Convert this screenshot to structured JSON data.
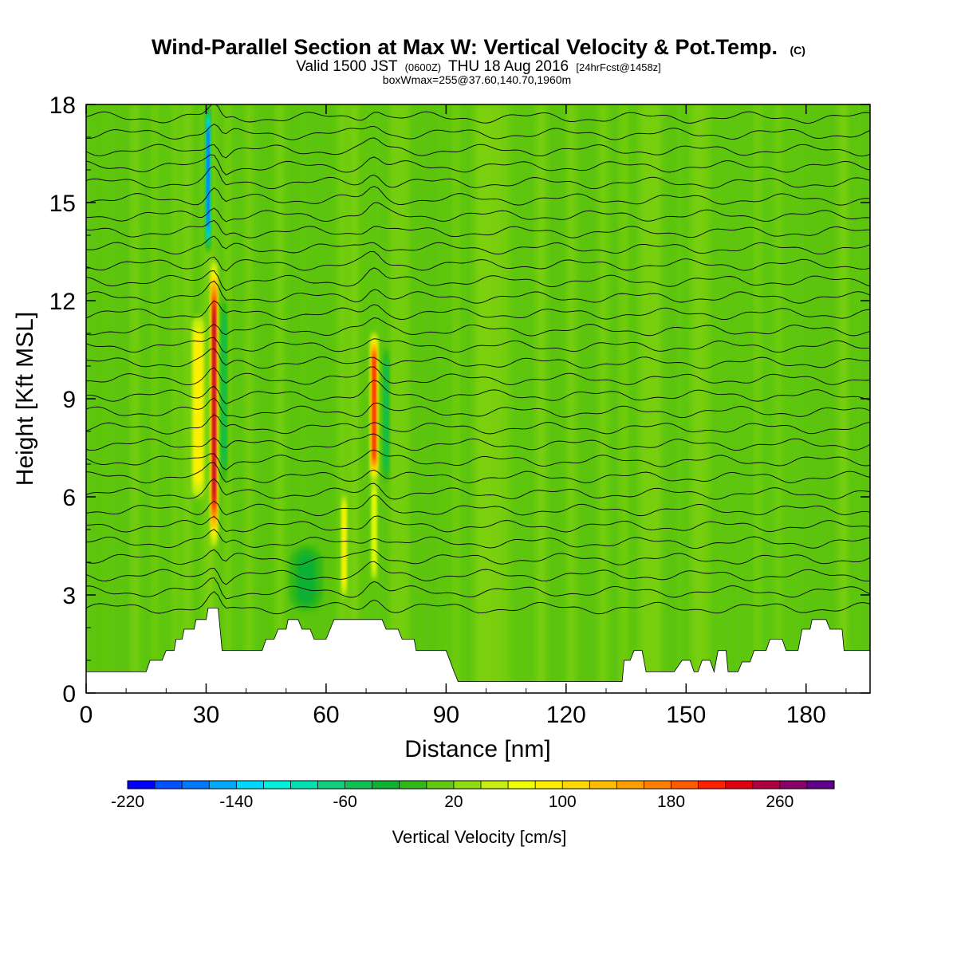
{
  "header": {
    "title": "Wind-Parallel Section at Max W: Vertical Velocity & Pot.Temp.",
    "copyright": "(C)",
    "valid_prefix": "Valid 1500 JST",
    "valid_utc": "(0600Z)",
    "valid_date": "THU 18 Aug 2016",
    "forecast": "[24hrFcst@1458z]",
    "box_note": "boxWmax=255@37.60,140.70,1960m"
  },
  "chart_data": {
    "type": "heatmap",
    "xlabel": "Distance [nm]",
    "ylabel": "Height [Kft MSL]",
    "xlim": [
      0,
      196
    ],
    "ylim": [
      0,
      18
    ],
    "x_ticks": [
      "0",
      "30",
      "60",
      "90",
      "120",
      "150",
      "180"
    ],
    "y_ticks": [
      "0",
      "3",
      "6",
      "9",
      "12",
      "15",
      "18"
    ],
    "x_tick_values": [
      0,
      30,
      60,
      90,
      120,
      150,
      180
    ],
    "y_tick_values": [
      0,
      3,
      6,
      9,
      12,
      15,
      18
    ],
    "background_value": 10,
    "updrafts": [
      {
        "x": 32,
        "width": 1.2,
        "z_min": 4.5,
        "z_max": 13.2,
        "peak": 255
      },
      {
        "x": 28,
        "width": 2.2,
        "z_min": 6.0,
        "z_max": 11.5,
        "peak": 80
      },
      {
        "x": 72,
        "width": 1.3,
        "z_min": 6.5,
        "z_max": 11.0,
        "peak": 200
      },
      {
        "x": 64.5,
        "width": 0.9,
        "z_min": 3.0,
        "z_max": 6.0,
        "peak": 80
      },
      {
        "x": 72,
        "width": 1.0,
        "z_min": 3.5,
        "z_max": 6.5,
        "peak": 70
      }
    ],
    "downdrafts": [
      {
        "x": 30.5,
        "width": 0.9,
        "z_min": 13.5,
        "z_max": 18.0,
        "peak": -200
      },
      {
        "x": 34.5,
        "width": 1.0,
        "z_min": 6.5,
        "z_max": 12.0,
        "peak": -60
      },
      {
        "x": 75,
        "width": 1.0,
        "z_min": 6.5,
        "z_max": 10.5,
        "peak": -60
      },
      {
        "x": 55,
        "width": 6.0,
        "z_min": 2.5,
        "z_max": 4.5,
        "peak": -40
      }
    ],
    "terrain": [
      [
        0,
        0.65
      ],
      [
        8,
        0.65
      ],
      [
        15,
        0.65
      ],
      [
        16,
        1.0
      ],
      [
        19,
        1.0
      ],
      [
        20,
        1.3
      ],
      [
        22,
        1.3
      ],
      [
        22.5,
        1.65
      ],
      [
        24,
        1.65
      ],
      [
        24.5,
        1.95
      ],
      [
        27,
        1.95
      ],
      [
        27.5,
        2.25
      ],
      [
        30,
        2.25
      ],
      [
        30.5,
        2.6
      ],
      [
        33,
        2.6
      ],
      [
        33.5,
        1.95
      ],
      [
        34,
        1.3
      ],
      [
        44,
        1.3
      ],
      [
        45,
        1.65
      ],
      [
        47,
        1.65
      ],
      [
        48,
        1.95
      ],
      [
        50,
        1.95
      ],
      [
        50.5,
        2.25
      ],
      [
        53,
        2.25
      ],
      [
        54,
        1.95
      ],
      [
        56,
        1.95
      ],
      [
        57,
        1.65
      ],
      [
        60,
        1.65
      ],
      [
        61,
        1.95
      ],
      [
        62,
        2.25
      ],
      [
        74,
        2.25
      ],
      [
        75,
        1.95
      ],
      [
        78,
        1.95
      ],
      [
        79,
        1.65
      ],
      [
        82,
        1.65
      ],
      [
        82.5,
        1.3
      ],
      [
        90,
        1.3
      ],
      [
        92,
        0.65
      ],
      [
        93,
        0.35
      ],
      [
        134,
        0.35
      ],
      [
        134.5,
        1.0
      ],
      [
        136,
        1.0
      ],
      [
        137,
        1.3
      ],
      [
        139,
        1.3
      ],
      [
        140,
        0.65
      ],
      [
        147,
        0.65
      ],
      [
        149,
        1.0
      ],
      [
        151,
        1.0
      ],
      [
        152,
        0.65
      ],
      [
        153,
        0.65
      ],
      [
        154,
        1.0
      ],
      [
        156,
        1.0
      ],
      [
        157,
        0.65
      ],
      [
        158,
        1.3
      ],
      [
        160,
        1.3
      ],
      [
        160.5,
        0.65
      ],
      [
        163,
        0.65
      ],
      [
        164,
        0.95
      ],
      [
        166,
        0.95
      ],
      [
        167,
        1.3
      ],
      [
        170,
        1.3
      ],
      [
        171,
        1.65
      ],
      [
        174,
        1.65
      ],
      [
        175,
        1.3
      ],
      [
        178,
        1.3
      ],
      [
        179,
        1.95
      ],
      [
        181,
        1.95
      ],
      [
        181.5,
        2.25
      ],
      [
        185,
        2.25
      ],
      [
        186,
        1.95
      ],
      [
        189,
        1.95
      ],
      [
        189.5,
        1.3
      ],
      [
        196,
        1.3
      ]
    ],
    "theta_contour_base_heights": [
      2.6,
      3.1,
      3.6,
      4.1,
      4.6,
      5.1,
      5.6,
      6.1,
      6.6,
      7.1,
      7.6,
      8.1,
      8.6,
      9.1,
      9.6,
      10.1,
      10.6,
      11.1,
      11.6,
      12.1,
      12.6,
      13.1,
      13.6,
      14.1,
      14.6,
      15.1,
      15.6,
      16.1,
      16.6,
      17.1,
      17.6
    ]
  },
  "colorbar": {
    "label": "Vertical Velocity [cm/s]",
    "tick_labels": [
      "-220",
      "-140",
      "-60",
      "20",
      "100",
      "180",
      "260"
    ],
    "tick_values": [
      -220,
      -140,
      -60,
      20,
      100,
      180,
      260
    ],
    "min": -220,
    "max": 300,
    "step": 20,
    "colors": [
      "#0000ff",
      "#0050ff",
      "#0078ff",
      "#00a8ff",
      "#00d8ff",
      "#00f0e0",
      "#00e0b0",
      "#10d080",
      "#10c050",
      "#10b030",
      "#30b818",
      "#60c810",
      "#90dc10",
      "#c8ee10",
      "#f0ff00",
      "#fff000",
      "#ffd800",
      "#ffbc00",
      "#ffa000",
      "#ff8000",
      "#ff5c00",
      "#ff2000",
      "#e00010",
      "#b00040",
      "#880068",
      "#600088"
    ]
  }
}
